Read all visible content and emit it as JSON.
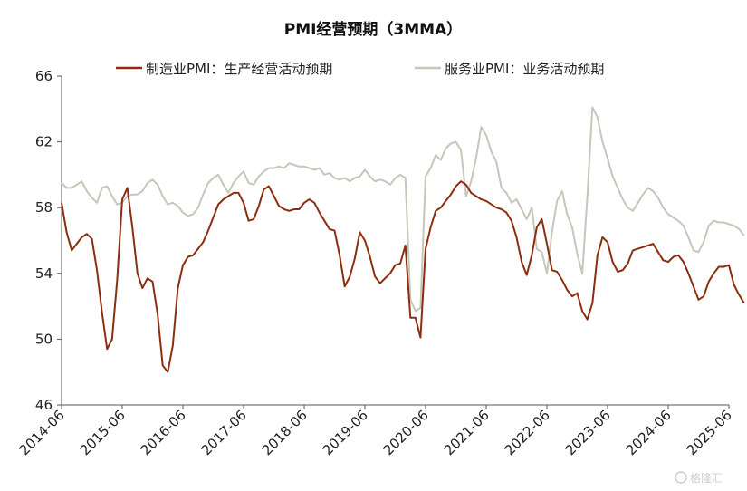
{
  "chart_data": {
    "type": "line",
    "title": "PMI经营预期（3MMA）",
    "xlabel": "",
    "ylabel": "",
    "ylim": [
      46,
      66
    ],
    "yticks": [
      46,
      50,
      54,
      58,
      62,
      66
    ],
    "x_range": [
      "2014-06",
      "2025-06"
    ],
    "xticks": [
      "2014-06",
      "2015-06",
      "2016-06",
      "2017-06",
      "2018-06",
      "2019-06",
      "2020-06",
      "2021-06",
      "2022-06",
      "2023-06",
      "2024-06",
      "2025-06"
    ],
    "legend_position": "top",
    "grid": false,
    "series": [
      {
        "name": "制造业PMI：生产经营活动预期",
        "color": "#8B2E10",
        "points": [
          [
            "2014-06",
            58.3
          ],
          [
            "2014-07",
            56.5
          ],
          [
            "2014-08",
            55.4
          ],
          [
            "2014-09",
            55.8
          ],
          [
            "2014-10",
            56.2
          ],
          [
            "2014-11",
            56.4
          ],
          [
            "2014-12",
            56.1
          ],
          [
            "2015-01",
            54.2
          ],
          [
            "2015-02",
            51.6
          ],
          [
            "2015-03",
            49.4
          ],
          [
            "2015-04",
            50.0
          ],
          [
            "2015-05",
            53.6
          ],
          [
            "2015-06",
            58.5
          ],
          [
            "2015-07",
            59.2
          ],
          [
            "2015-08",
            56.8
          ],
          [
            "2015-09",
            54.0
          ],
          [
            "2015-10",
            53.1
          ],
          [
            "2015-11",
            53.7
          ],
          [
            "2015-12",
            53.5
          ],
          [
            "2016-01",
            51.5
          ],
          [
            "2016-02",
            48.4
          ],
          [
            "2016-03",
            48.0
          ],
          [
            "2016-04",
            49.6
          ],
          [
            "2016-05",
            53.1
          ],
          [
            "2016-06",
            54.5
          ],
          [
            "2016-07",
            55.0
          ],
          [
            "2016-08",
            55.1
          ],
          [
            "2016-09",
            55.5
          ],
          [
            "2016-10",
            55.9
          ],
          [
            "2016-11",
            56.6
          ],
          [
            "2016-12",
            57.4
          ],
          [
            "2017-01",
            58.2
          ],
          [
            "2017-02",
            58.5
          ],
          [
            "2017-03",
            58.7
          ],
          [
            "2017-04",
            58.9
          ],
          [
            "2017-05",
            58.9
          ],
          [
            "2017-06",
            58.3
          ],
          [
            "2017-07",
            57.2
          ],
          [
            "2017-08",
            57.3
          ],
          [
            "2017-09",
            58.1
          ],
          [
            "2017-10",
            59.1
          ],
          [
            "2017-11",
            59.3
          ],
          [
            "2017-12",
            58.7
          ],
          [
            "2018-01",
            58.1
          ],
          [
            "2018-02",
            57.9
          ],
          [
            "2018-03",
            57.8
          ],
          [
            "2018-04",
            57.9
          ],
          [
            "2018-05",
            57.9
          ],
          [
            "2018-06",
            58.3
          ],
          [
            "2018-07",
            58.5
          ],
          [
            "2018-08",
            58.3
          ],
          [
            "2018-09",
            57.7
          ],
          [
            "2018-10",
            57.2
          ],
          [
            "2018-11",
            56.7
          ],
          [
            "2018-12",
            56.6
          ],
          [
            "2019-01",
            55.1
          ],
          [
            "2019-02",
            53.2
          ],
          [
            "2019-03",
            53.8
          ],
          [
            "2019-04",
            54.9
          ],
          [
            "2019-05",
            56.5
          ],
          [
            "2019-06",
            56.0
          ],
          [
            "2019-07",
            55.0
          ],
          [
            "2019-08",
            53.8
          ],
          [
            "2019-09",
            53.4
          ],
          [
            "2019-10",
            53.7
          ],
          [
            "2019-11",
            54.0
          ],
          [
            "2019-12",
            54.5
          ],
          [
            "2020-01",
            54.6
          ],
          [
            "2020-02",
            55.7
          ],
          [
            "2020-03",
            51.3
          ],
          [
            "2020-04",
            51.3
          ],
          [
            "2020-05",
            50.1
          ],
          [
            "2020-06",
            55.5
          ],
          [
            "2020-07",
            56.8
          ],
          [
            "2020-08",
            57.8
          ],
          [
            "2020-09",
            58.0
          ],
          [
            "2020-10",
            58.4
          ],
          [
            "2020-11",
            58.8
          ],
          [
            "2020-12",
            59.3
          ],
          [
            "2021-01",
            59.6
          ],
          [
            "2021-02",
            59.4
          ],
          [
            "2021-03",
            58.9
          ],
          [
            "2021-04",
            58.7
          ],
          [
            "2021-05",
            58.5
          ],
          [
            "2021-06",
            58.4
          ],
          [
            "2021-07",
            58.2
          ],
          [
            "2021-08",
            58.0
          ],
          [
            "2021-09",
            57.9
          ],
          [
            "2021-10",
            57.7
          ],
          [
            "2021-11",
            57.2
          ],
          [
            "2021-12",
            56.2
          ],
          [
            "2022-01",
            54.7
          ],
          [
            "2022-02",
            53.9
          ],
          [
            "2022-03",
            55.1
          ],
          [
            "2022-04",
            56.8
          ],
          [
            "2022-05",
            57.3
          ],
          [
            "2022-06",
            55.8
          ],
          [
            "2022-07",
            54.2
          ],
          [
            "2022-08",
            54.1
          ],
          [
            "2022-09",
            53.6
          ],
          [
            "2022-10",
            53.0
          ],
          [
            "2022-11",
            52.6
          ],
          [
            "2022-12",
            52.8
          ],
          [
            "2023-01",
            51.7
          ],
          [
            "2023-02",
            51.2
          ],
          [
            "2023-03",
            52.2
          ],
          [
            "2023-04",
            55.1
          ],
          [
            "2023-05",
            56.2
          ],
          [
            "2023-06",
            55.9
          ],
          [
            "2023-07",
            54.7
          ],
          [
            "2023-08",
            54.1
          ],
          [
            "2023-09",
            54.2
          ],
          [
            "2023-10",
            54.6
          ],
          [
            "2023-11",
            55.4
          ],
          [
            "2023-12",
            55.5
          ],
          [
            "2024-01",
            55.6
          ],
          [
            "2024-02",
            55.7
          ],
          [
            "2024-03",
            55.8
          ],
          [
            "2024-04",
            55.3
          ],
          [
            "2024-05",
            54.8
          ],
          [
            "2024-06",
            54.7
          ],
          [
            "2024-07",
            55.0
          ],
          [
            "2024-08",
            55.1
          ],
          [
            "2024-09",
            54.7
          ],
          [
            "2024-10",
            54.0
          ],
          [
            "2024-11",
            53.2
          ],
          [
            "2024-12",
            52.4
          ],
          [
            "2025-01",
            52.6
          ],
          [
            "2025-02",
            53.5
          ],
          [
            "2025-03",
            54.0
          ],
          [
            "2025-04",
            54.4
          ],
          [
            "2025-05",
            54.4
          ],
          [
            "2025-06",
            54.5
          ],
          [
            "2025-07",
            53.3
          ],
          [
            "2025-08",
            52.7
          ],
          [
            "2025-09",
            52.2
          ]
        ]
      },
      {
        "name": "服务业PMI：业务活动预期",
        "color": "#C4C7BA",
        "points": [
          [
            "2014-06",
            59.5
          ],
          [
            "2014-07",
            59.2
          ],
          [
            "2014-08",
            59.2
          ],
          [
            "2014-09",
            59.4
          ],
          [
            "2014-10",
            59.6
          ],
          [
            "2014-11",
            59.0
          ],
          [
            "2014-12",
            58.6
          ],
          [
            "2015-01",
            58.3
          ],
          [
            "2015-02",
            59.2
          ],
          [
            "2015-03",
            59.3
          ],
          [
            "2015-04",
            58.7
          ],
          [
            "2015-05",
            58.2
          ],
          [
            "2015-06",
            58.3
          ],
          [
            "2015-07",
            58.7
          ],
          [
            "2015-08",
            58.8
          ],
          [
            "2015-09",
            58.8
          ],
          [
            "2015-10",
            59.0
          ],
          [
            "2015-11",
            59.5
          ],
          [
            "2015-12",
            59.7
          ],
          [
            "2016-01",
            59.4
          ],
          [
            "2016-02",
            58.7
          ],
          [
            "2016-03",
            58.2
          ],
          [
            "2016-04",
            58.3
          ],
          [
            "2016-05",
            58.1
          ],
          [
            "2016-06",
            57.7
          ],
          [
            "2016-07",
            57.5
          ],
          [
            "2016-08",
            57.6
          ],
          [
            "2016-09",
            58.0
          ],
          [
            "2016-10",
            58.8
          ],
          [
            "2016-11",
            59.5
          ],
          [
            "2016-12",
            59.8
          ],
          [
            "2017-01",
            60.0
          ],
          [
            "2017-02",
            59.4
          ],
          [
            "2017-03",
            58.9
          ],
          [
            "2017-04",
            59.5
          ],
          [
            "2017-05",
            59.9
          ],
          [
            "2017-06",
            60.2
          ],
          [
            "2017-07",
            59.5
          ],
          [
            "2017-08",
            59.4
          ],
          [
            "2017-09",
            59.9
          ],
          [
            "2017-10",
            60.2
          ],
          [
            "2017-11",
            60.4
          ],
          [
            "2017-12",
            60.4
          ],
          [
            "2018-01",
            60.5
          ],
          [
            "2018-02",
            60.4
          ],
          [
            "2018-03",
            60.7
          ],
          [
            "2018-04",
            60.6
          ],
          [
            "2018-05",
            60.5
          ],
          [
            "2018-06",
            60.5
          ],
          [
            "2018-07",
            60.4
          ],
          [
            "2018-08",
            60.3
          ],
          [
            "2018-09",
            60.4
          ],
          [
            "2018-10",
            60.0
          ],
          [
            "2018-11",
            60.1
          ],
          [
            "2018-12",
            59.8
          ],
          [
            "2019-01",
            59.7
          ],
          [
            "2019-02",
            59.8
          ],
          [
            "2019-03",
            59.6
          ],
          [
            "2019-04",
            59.8
          ],
          [
            "2019-05",
            59.9
          ],
          [
            "2019-06",
            60.3
          ],
          [
            "2019-07",
            59.9
          ],
          [
            "2019-08",
            59.6
          ],
          [
            "2019-09",
            59.7
          ],
          [
            "2019-10",
            59.6
          ],
          [
            "2019-11",
            59.4
          ],
          [
            "2019-12",
            59.8
          ],
          [
            "2020-01",
            60.0
          ],
          [
            "2020-02",
            59.8
          ],
          [
            "2020-03",
            52.4
          ],
          [
            "2020-04",
            51.7
          ],
          [
            "2020-05",
            51.9
          ],
          [
            "2020-06",
            59.9
          ],
          [
            "2020-07",
            60.4
          ],
          [
            "2020-08",
            61.2
          ],
          [
            "2020-09",
            60.9
          ],
          [
            "2020-10",
            61.6
          ],
          [
            "2020-11",
            61.9
          ],
          [
            "2020-12",
            62.0
          ],
          [
            "2021-01",
            61.5
          ],
          [
            "2021-02",
            58.7
          ],
          [
            "2021-03",
            59.6
          ],
          [
            "2021-04",
            61.0
          ],
          [
            "2021-05",
            62.9
          ],
          [
            "2021-06",
            62.4
          ],
          [
            "2021-07",
            61.4
          ],
          [
            "2021-08",
            60.8
          ],
          [
            "2021-09",
            59.2
          ],
          [
            "2021-10",
            58.9
          ],
          [
            "2021-11",
            58.3
          ],
          [
            "2021-12",
            58.5
          ],
          [
            "2022-01",
            57.9
          ],
          [
            "2022-02",
            57.3
          ],
          [
            "2022-03",
            58.0
          ],
          [
            "2022-04",
            55.5
          ],
          [
            "2022-05",
            55.3
          ],
          [
            "2022-06",
            54.0
          ],
          [
            "2022-07",
            56.5
          ],
          [
            "2022-08",
            58.4
          ],
          [
            "2022-09",
            59.0
          ],
          [
            "2022-10",
            57.6
          ],
          [
            "2022-11",
            56.8
          ],
          [
            "2022-12",
            55.2
          ],
          [
            "2023-01",
            54.0
          ],
          [
            "2023-02",
            58.7
          ],
          [
            "2023-03",
            64.1
          ],
          [
            "2023-04",
            63.5
          ],
          [
            "2023-05",
            62.0
          ],
          [
            "2023-06",
            61.0
          ],
          [
            "2023-07",
            59.9
          ],
          [
            "2023-08",
            59.2
          ],
          [
            "2023-09",
            58.5
          ],
          [
            "2023-10",
            58.0
          ],
          [
            "2023-11",
            57.8
          ],
          [
            "2023-12",
            58.3
          ],
          [
            "2024-01",
            58.8
          ],
          [
            "2024-02",
            59.2
          ],
          [
            "2024-03",
            59.0
          ],
          [
            "2024-04",
            58.6
          ],
          [
            "2024-05",
            58.0
          ],
          [
            "2024-06",
            57.6
          ],
          [
            "2024-07",
            57.4
          ],
          [
            "2024-08",
            57.2
          ],
          [
            "2024-09",
            56.9
          ],
          [
            "2024-10",
            56.2
          ],
          [
            "2024-11",
            55.4
          ],
          [
            "2024-12",
            55.3
          ],
          [
            "2025-01",
            55.9
          ],
          [
            "2025-02",
            56.9
          ],
          [
            "2025-03",
            57.2
          ],
          [
            "2025-04",
            57.1
          ],
          [
            "2025-05",
            57.1
          ],
          [
            "2025-06",
            57.0
          ],
          [
            "2025-07",
            56.9
          ],
          [
            "2025-08",
            56.7
          ],
          [
            "2025-09",
            56.3
          ]
        ]
      }
    ]
  },
  "watermark": "格隆汇"
}
